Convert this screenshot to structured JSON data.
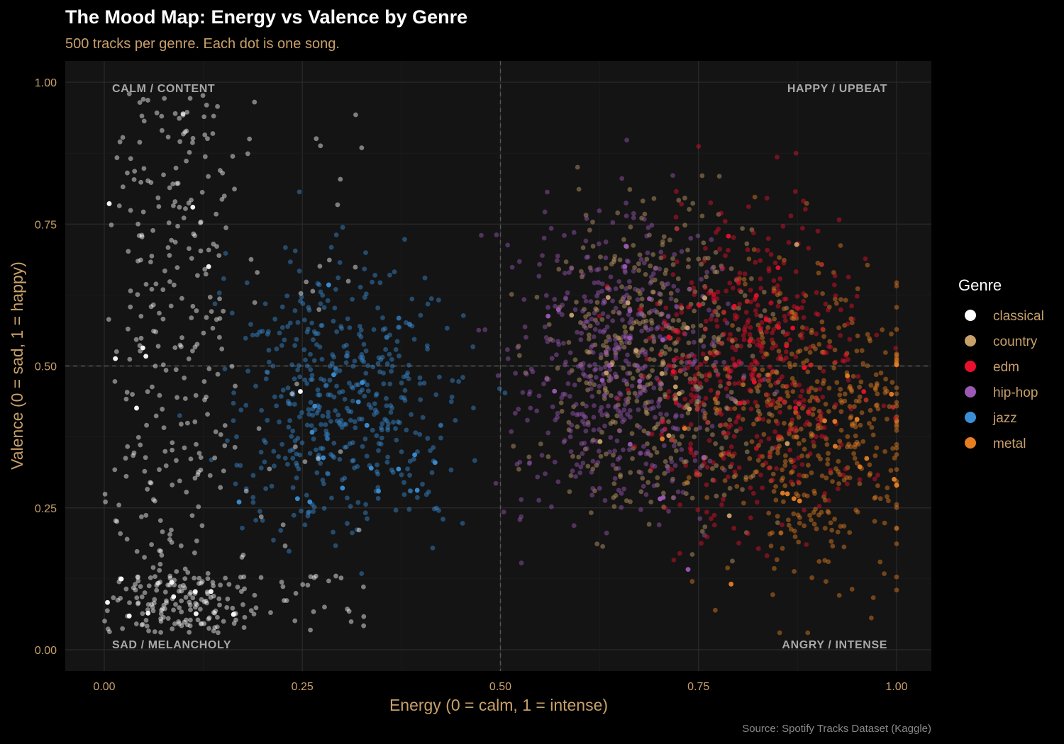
{
  "chart_data": {
    "type": "scatter",
    "title": "The Mood Map: Energy vs Valence by Genre",
    "subtitle": "500 tracks per genre. Each dot is one song.",
    "xlabel": "Energy (0 = calm, 1 = intense)",
    "ylabel": "Valence (0 = sad, 1 = happy)",
    "xlim": [
      -0.05,
      1.05
    ],
    "ylim": [
      -0.075,
      1.04
    ],
    "xticks": [
      "0.00",
      "0.25",
      "0.50",
      "0.75",
      "1.00"
    ],
    "yticks": [
      "0.00",
      "0.25",
      "0.50",
      "0.75",
      "1.00"
    ],
    "reference_lines": {
      "x": 0.5,
      "y": 0.5
    },
    "grid": true,
    "quadrant_labels": {
      "top_left": "CALM / CONTENT",
      "top_right": "HAPPY / UPBEAT",
      "bottom_left": "SAD / MELANCHOLY",
      "bottom_right": "ANGRY / INTENSE"
    },
    "legend": {
      "title": "Genre",
      "position": "right"
    },
    "caption": "Source: Spotify Tracks Dataset (Kaggle)",
    "points_per_genre": 500,
    "series": [
      {
        "name": "classical",
        "color": "#ffffff",
        "energy_range": [
          0.0,
          0.33
        ],
        "valence_range": [
          0.03,
          0.97
        ],
        "energy_center": 0.1,
        "valence_center": 0.35
      },
      {
        "name": "country",
        "color": "#c8a06a",
        "energy_range": [
          0.18,
          1.0
        ],
        "valence_range": [
          0.03,
          0.97
        ],
        "energy_center": 0.7,
        "valence_center": 0.5
      },
      {
        "name": "edm",
        "color": "#e8102c",
        "energy_range": [
          0.35,
          1.0
        ],
        "valence_range": [
          0.03,
          0.95
        ],
        "energy_center": 0.82,
        "valence_center": 0.5
      },
      {
        "name": "hip-hop",
        "color": "#9b59b6",
        "energy_range": [
          0.2,
          0.95
        ],
        "valence_range": [
          0.03,
          0.96
        ],
        "energy_center": 0.65,
        "valence_center": 0.5
      },
      {
        "name": "jazz",
        "color": "#3a8fd6",
        "energy_range": [
          0.0,
          0.8
        ],
        "valence_range": [
          0.03,
          0.97
        ],
        "energy_center": 0.3,
        "valence_center": 0.45
      },
      {
        "name": "metal",
        "color": "#e67e22",
        "energy_range": [
          0.6,
          1.0
        ],
        "valence_range": [
          0.03,
          0.9
        ],
        "energy_center": 0.9,
        "valence_center": 0.4
      }
    ]
  }
}
